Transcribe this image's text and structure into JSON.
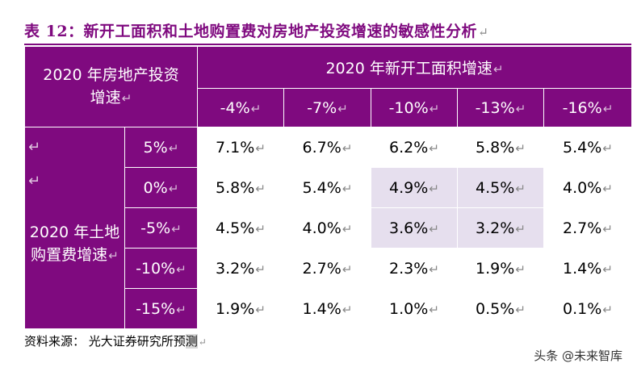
{
  "title": "表 12：新开工面积和土地购置费对房地产投资增速的敏感性分析",
  "return_mark": "↵",
  "corner_label_line1": "2020 年房地产投资",
  "corner_label_line2": "增速",
  "col_group_label": "2020 年新开工面积增速",
  "col_headers": [
    "-4%",
    "-7%",
    "-10%",
    "-13%",
    "-16%"
  ],
  "row_group_label_line1": "2020 年土地",
  "row_group_label_line2": "购置费增速",
  "rows": [
    {
      "label": "5%",
      "values": [
        "7.1%",
        "6.7%",
        "6.2%",
        "5.8%",
        "5.4%"
      ]
    },
    {
      "label": "0%",
      "values": [
        "5.8%",
        "5.4%",
        "4.9%",
        "4.5%",
        "4.0%"
      ]
    },
    {
      "label": "-5%",
      "values": [
        "4.5%",
        "4.0%",
        "3.6%",
        "3.2%",
        "2.7%"
      ]
    },
    {
      "label": "-10%",
      "values": [
        "3.2%",
        "2.7%",
        "2.3%",
        "1.9%",
        "1.4%"
      ]
    },
    {
      "label": "-15%",
      "values": [
        "1.9%",
        "1.4%",
        "1.0%",
        "0.5%",
        "0.1%"
      ]
    }
  ],
  "highlight_color": "#e6dfee",
  "header_color": "#7f0a7f",
  "source_prefix": "资料来源：  光大证券研究所预",
  "source_last": "测",
  "watermark": "头条 @未来智库"
}
